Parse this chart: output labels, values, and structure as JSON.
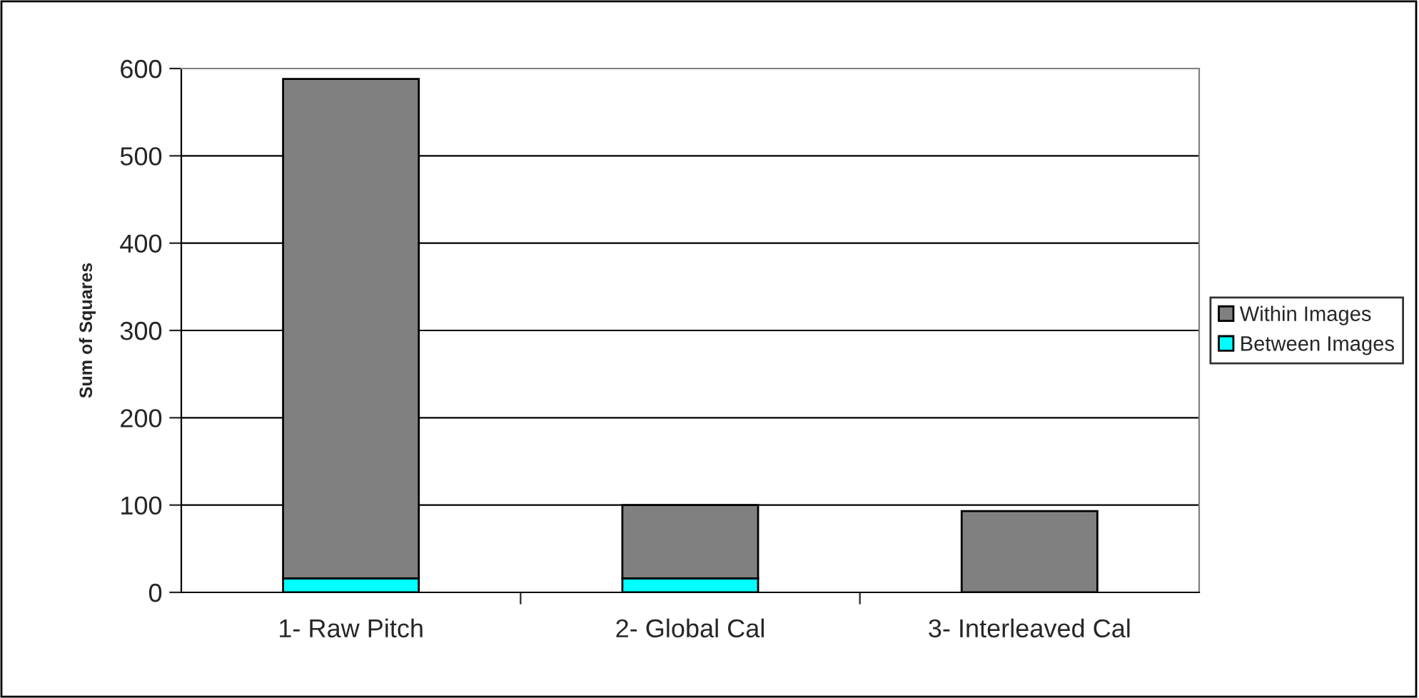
{
  "chart_data": {
    "type": "bar",
    "stacked": true,
    "ylabel": "Sum of Squares",
    "categories": [
      "1- Raw Pitch",
      "2- Global Cal",
      "3- Interleaved Cal"
    ],
    "series": [
      {
        "name": "Between Images",
        "color": "#00ffff",
        "values": [
          16,
          16,
          null
        ]
      },
      {
        "name": "Within Images",
        "color": "#808080",
        "values": [
          572,
          84,
          93
        ]
      }
    ],
    "ylim": [
      0,
      600
    ],
    "yticks": [
      0,
      100,
      200,
      300,
      400,
      500,
      600
    ],
    "grid": "y",
    "legend": "right"
  }
}
